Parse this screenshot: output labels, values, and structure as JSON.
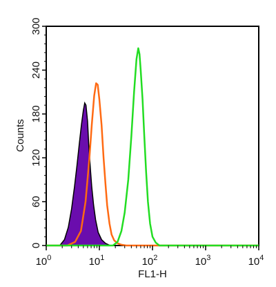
{
  "chart_data": {
    "type": "area",
    "xlabel": "FL1-H",
    "ylabel": "Counts",
    "x_scale": "log",
    "xlim": [
      1,
      10000
    ],
    "ylim": [
      0,
      300
    ],
    "x_ticks": [
      {
        "value": 1,
        "base": "10",
        "exp": "0"
      },
      {
        "value": 10,
        "base": "10",
        "exp": "1"
      },
      {
        "value": 100,
        "base": "10",
        "exp": "2"
      },
      {
        "value": 1000,
        "base": "10",
        "exp": "3"
      },
      {
        "value": 10000,
        "base": "10",
        "exp": "4"
      }
    ],
    "y_ticks": [
      0,
      60,
      120,
      180,
      240,
      300
    ],
    "grid": false,
    "series": [
      {
        "style": "filled",
        "color": "#6a0dad",
        "x": [
          1.8,
          2.2,
          2.6,
          3.0,
          3.4,
          3.8,
          4.2,
          4.6,
          5.0,
          5.3,
          5.6,
          6.0,
          6.3,
          6.7,
          7.2,
          7.8,
          8.5,
          9.5,
          11,
          13,
          16
        ],
        "y": [
          0,
          8,
          25,
          50,
          80,
          110,
          140,
          165,
          185,
          195,
          192,
          170,
          140,
          110,
          80,
          55,
          35,
          18,
          8,
          3,
          0
        ]
      },
      {
        "style": "line",
        "color": "#ff6a13",
        "x": [
          2.5,
          3.5,
          4.5,
          5.5,
          6.5,
          7.2,
          8.0,
          8.7,
          9.3,
          10,
          11,
          12,
          13,
          14,
          15.5,
          17,
          19,
          22,
          26,
          32
        ],
        "y": [
          0,
          5,
          20,
          60,
          120,
          165,
          205,
          222,
          220,
          200,
          165,
          120,
          85,
          55,
          30,
          15,
          7,
          3,
          1,
          0
        ]
      },
      {
        "style": "line",
        "color": "#22dd22",
        "x": [
          18,
          22,
          26,
          30,
          35,
          40,
          45,
          50,
          54,
          57,
          60,
          65,
          70,
          76,
          82,
          90,
          100,
          115,
          135
        ],
        "y": [
          0,
          5,
          20,
          45,
          90,
          150,
          210,
          255,
          270,
          262,
          240,
          200,
          150,
          100,
          60,
          30,
          12,
          4,
          0
        ]
      }
    ]
  }
}
